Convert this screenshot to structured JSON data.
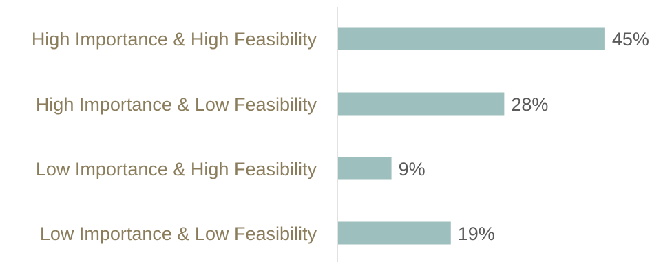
{
  "chart_data": {
    "type": "bar",
    "orientation": "horizontal",
    "categories": [
      "High Importance & High Feasibility",
      "High Importance & Low Feasibility",
      "Low Importance & High Feasibility",
      "Low Importance & Low Feasibility"
    ],
    "values": [
      45,
      28,
      9,
      19
    ],
    "value_labels": [
      "45%",
      "28%",
      "9%",
      "19%"
    ],
    "xlim": [
      0,
      50
    ],
    "grid": false,
    "legend": "none",
    "colors": {
      "bar": "#9dbfbd",
      "category_text": "#8b7d5c",
      "value_text": "#5a5a5a",
      "axis": "#d9d9d9"
    }
  }
}
